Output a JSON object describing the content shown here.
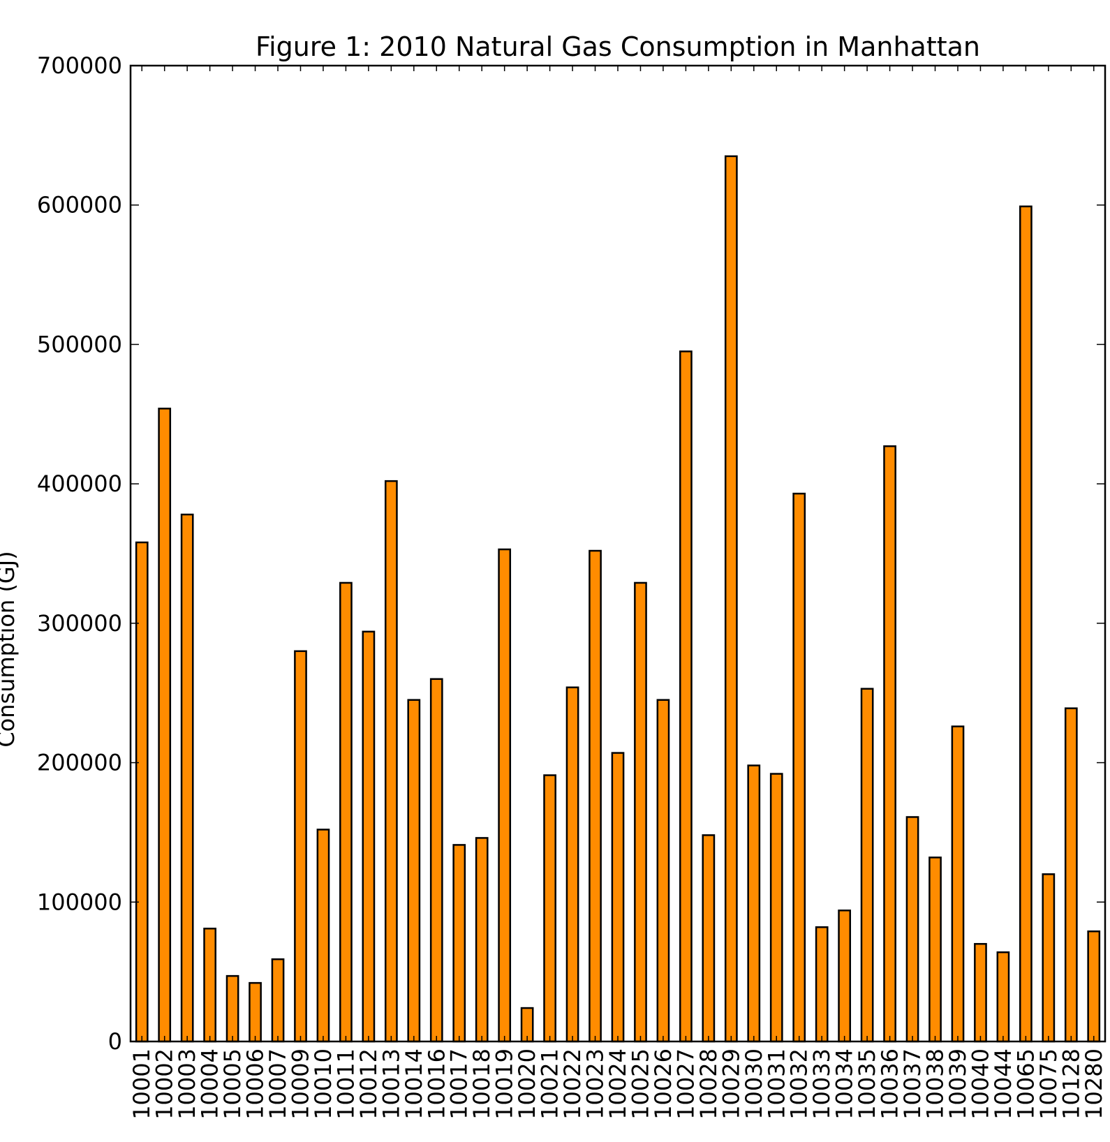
{
  "chart_data": {
    "type": "bar",
    "title": "Figure 1: 2010 Natural Gas Consumption in Manhattan",
    "xlabel": "",
    "ylabel": "Consumption (GJ)",
    "ylim": [
      0,
      700000
    ],
    "yticks": [
      "0",
      "100000",
      "200000",
      "300000",
      "400000",
      "500000",
      "600000",
      "700000"
    ],
    "categories": [
      "10001",
      "10002",
      "10003",
      "10004",
      "10005",
      "10006",
      "10007",
      "10009",
      "10010",
      "10011",
      "10012",
      "10013",
      "10014",
      "10016",
      "10017",
      "10018",
      "10019",
      "10020",
      "10021",
      "10022",
      "10023",
      "10024",
      "10025",
      "10026",
      "10027",
      "10028",
      "10029",
      "10030",
      "10031",
      "10032",
      "10033",
      "10034",
      "10035",
      "10036",
      "10037",
      "10038",
      "10039",
      "10040",
      "10044",
      "10065",
      "10075",
      "10128",
      "10280"
    ],
    "values": [
      358000,
      454000,
      378000,
      81000,
      47000,
      42000,
      59000,
      280000,
      152000,
      329000,
      294000,
      402000,
      245000,
      260000,
      141000,
      146000,
      353000,
      24000,
      191000,
      254000,
      352000,
      207000,
      329000,
      245000,
      495000,
      148000,
      635000,
      198000,
      192000,
      393000,
      82000,
      94000,
      253000,
      427000,
      161000,
      132000,
      226000,
      70000,
      64000,
      599000,
      120000,
      239000,
      79000
    ],
    "bar_color": "#ff8c00",
    "grid": false
  }
}
